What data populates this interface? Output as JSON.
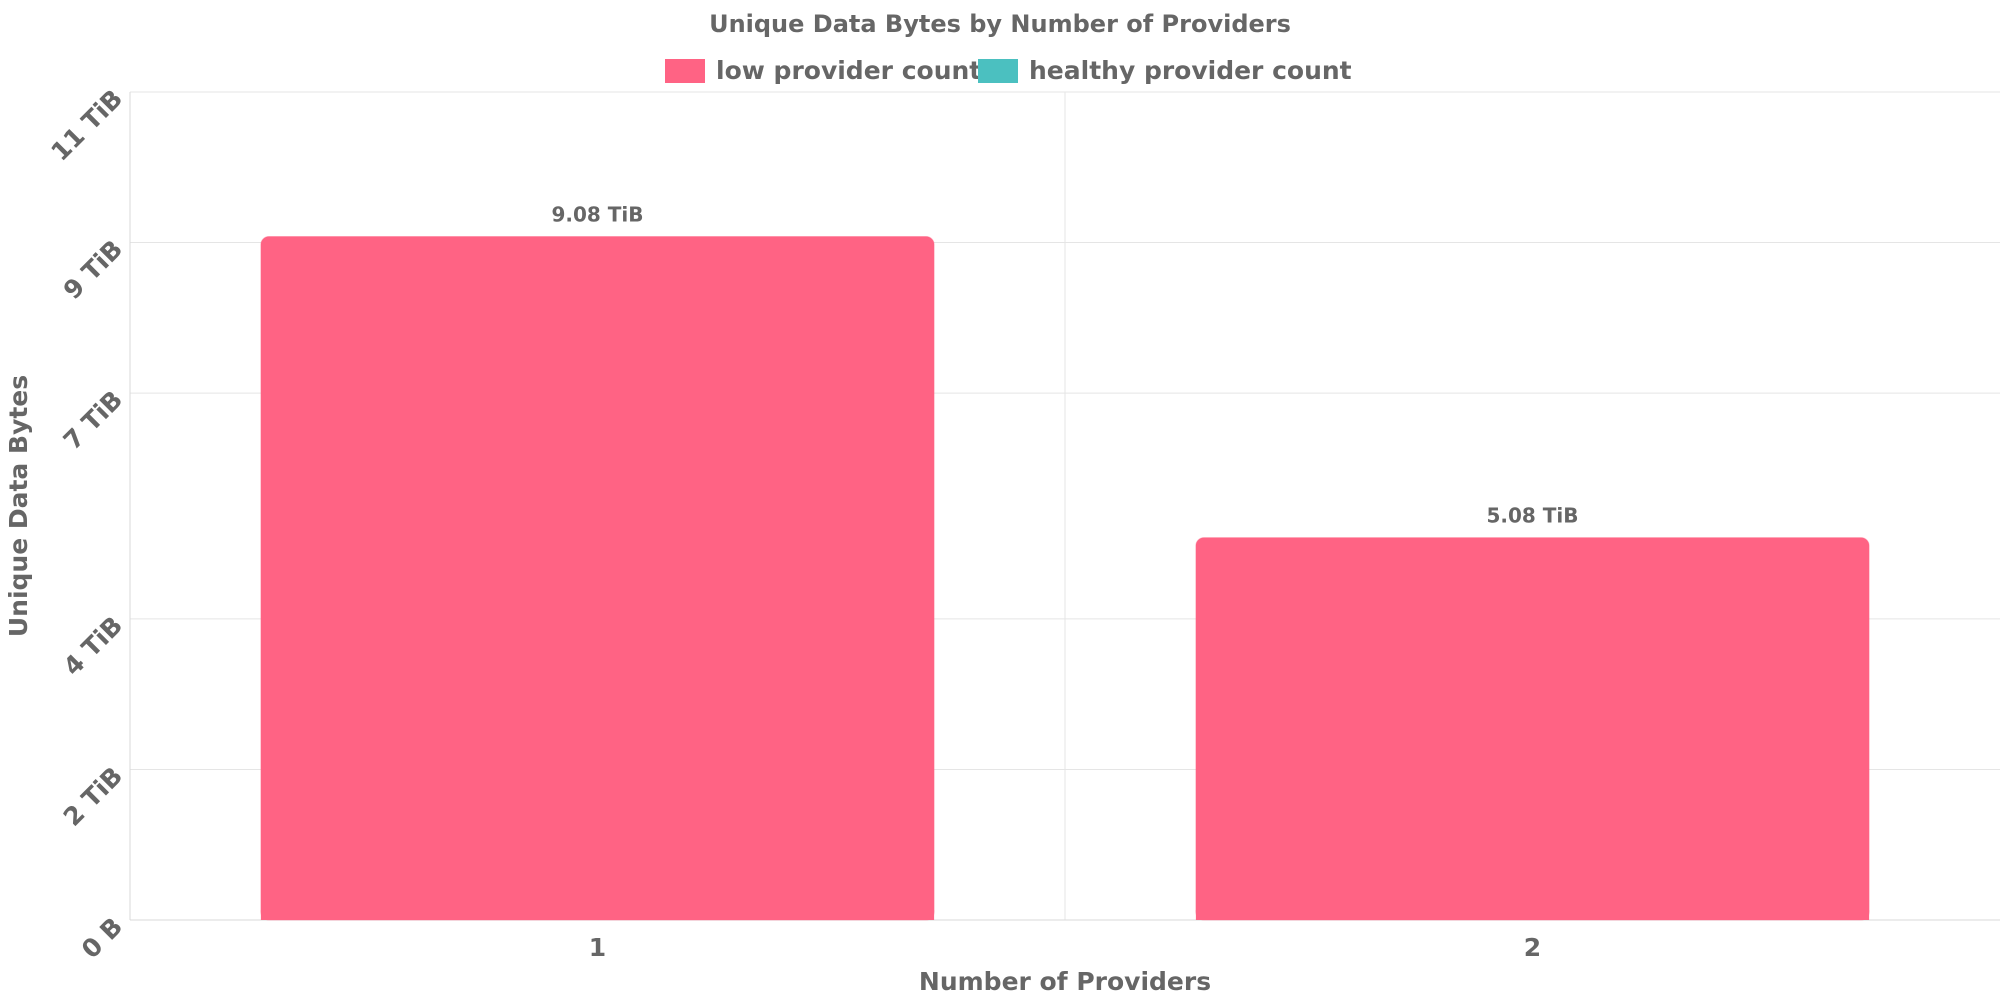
{
  "chart_data": {
    "type": "bar",
    "title": "Unique Data Bytes by Number of Providers",
    "xlabel": "Number of Providers",
    "ylabel": "Unique Data Bytes",
    "categories": [
      "1",
      "2"
    ],
    "series": [
      {
        "name": "low provider count",
        "color": "#ff6384",
        "values": [
          9.08,
          5.08
        ],
        "labels": [
          "9.08 TiB",
          "5.08 TiB"
        ]
      },
      {
        "name": "healthy provider count",
        "color": "#4bc0c0",
        "values": [
          0,
          0
        ],
        "labels": []
      }
    ],
    "y_unit": "TiB",
    "ylim": [
      0,
      11
    ],
    "y_ticks": [
      {
        "value": 0,
        "label": "0 B"
      },
      {
        "value": 2,
        "label": "2 TiB"
      },
      {
        "value": 4,
        "label": "4 TiB"
      },
      {
        "value": 7,
        "label": "7 TiB"
      },
      {
        "value": 9,
        "label": "9 TiB"
      },
      {
        "value": 11,
        "label": "11 TiB"
      }
    ],
    "grid": true,
    "legend_position": "top"
  }
}
